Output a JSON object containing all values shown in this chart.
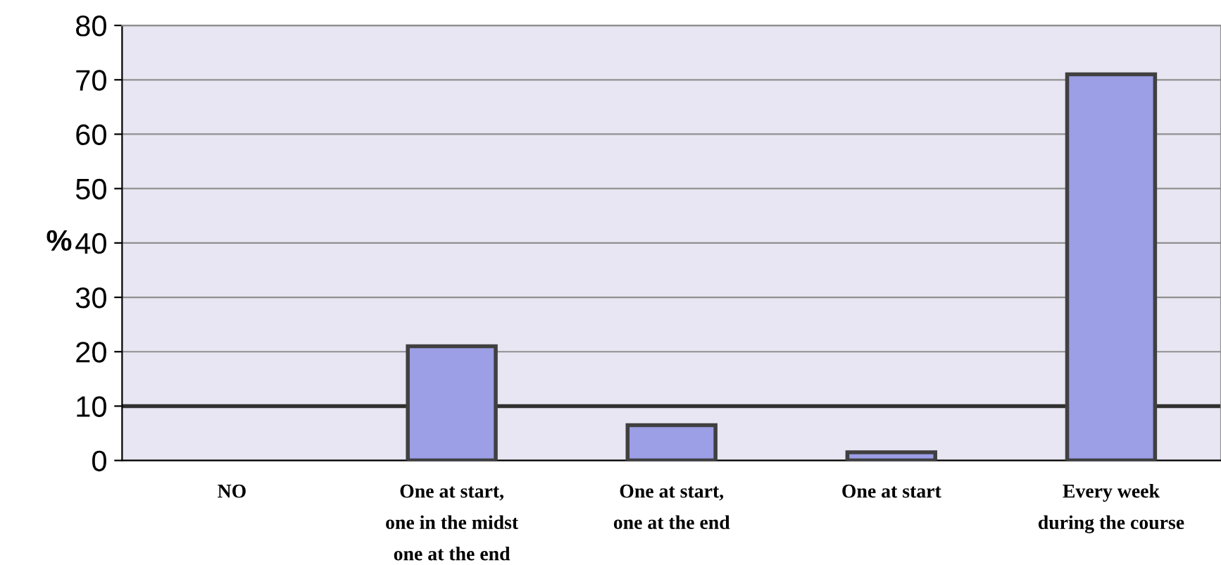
{
  "chart_data": {
    "type": "bar",
    "ylabel": "%",
    "categories": [
      "NO",
      "One at start,\none in the midst\none at the end",
      "One at start,\none at the end",
      "One at start",
      "Every week\nduring the course"
    ],
    "values": [
      0,
      21,
      6.5,
      1.5,
      71
    ],
    "color": "#9c9ee6",
    "ylim": [
      0,
      80
    ],
    "yticks": [
      0,
      10,
      20,
      30,
      40,
      50,
      60,
      70,
      80
    ],
    "grid": "y",
    "ref_lines": [
      {
        "axis": "y",
        "value": 10,
        "color": "#303030"
      }
    ]
  }
}
